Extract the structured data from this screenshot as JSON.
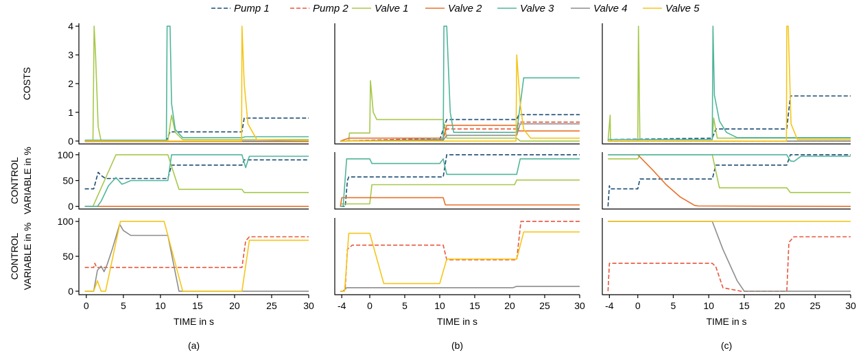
{
  "legend": [
    {
      "name": "Pump 1",
      "color": "#1a4b73",
      "dash": true
    },
    {
      "name": "Pump 2",
      "color": "#e8543a",
      "dash": true
    },
    {
      "name": "Valve 1",
      "color": "#a6c84a",
      "dash": false
    },
    {
      "name": "Valve 2",
      "color": "#e8702a",
      "dash": false
    },
    {
      "name": "Valve 3",
      "color": "#4fb59a",
      "dash": false
    },
    {
      "name": "Valve 4",
      "color": "#8c8c8c",
      "dash": false
    },
    {
      "name": "Valve 5",
      "color": "#f5c518",
      "dash": false
    }
  ],
  "row_labels": [
    [
      "COSTS"
    ],
    [
      "CONTROL",
      "VARIABLE in %"
    ],
    [
      "CONTROL",
      "VARIABLE in %"
    ]
  ],
  "xlabel": "TIME in s",
  "column_captions": [
    "(a)",
    "(b)",
    "(c)"
  ],
  "chart_data": [
    {
      "type": "line",
      "caption": "(a)",
      "row": "costs",
      "xlim": [
        -1,
        30
      ],
      "ylim": [
        -0.1,
        4.1
      ],
      "yticks": [
        0,
        1,
        2,
        3,
        4
      ],
      "xticks": [],
      "series": [
        {
          "name": "Pump 1",
          "x": [
            -0.2,
            10.8,
            11.3,
            21,
            21.3,
            30
          ],
          "y": [
            0.02,
            0.02,
            0.32,
            0.32,
            0.8,
            0.8
          ]
        },
        {
          "name": "Pump 2",
          "x": [
            -0.2,
            30
          ],
          "y": [
            0.0,
            0.0
          ]
        },
        {
          "name": "Valve 1",
          "x": [
            -0.2,
            0.9,
            1.05,
            1.25,
            1.6,
            2.0,
            11.0,
            11.5,
            12.0,
            13.0,
            30
          ],
          "y": [
            0.0,
            0.0,
            4.0,
            3.0,
            0.5,
            0.0,
            0.0,
            0.9,
            0.3,
            0.05,
            0.05
          ]
        },
        {
          "name": "Valve 2",
          "x": [
            -0.2,
            30
          ],
          "y": [
            -0.02,
            -0.02
          ]
        },
        {
          "name": "Valve 3",
          "x": [
            -0.2,
            10.8,
            10.9,
            11.3,
            11.5,
            12.0,
            13.0,
            21.0,
            21.5,
            30
          ],
          "y": [
            0.03,
            0.03,
            4.0,
            4.0,
            1.3,
            0.4,
            0.12,
            0.12,
            0.15,
            0.15
          ]
        },
        {
          "name": "Valve 4",
          "x": [
            -0.2,
            30
          ],
          "y": [
            0.0,
            0.0
          ]
        },
        {
          "name": "Valve 5",
          "x": [
            -0.2,
            20.95,
            21.0,
            21.3,
            21.8,
            23.0,
            30
          ],
          "y": [
            0.0,
            0.0,
            4.0,
            2.0,
            0.6,
            0.05,
            0.02
          ]
        }
      ]
    },
    {
      "type": "line",
      "caption": "(a)",
      "row": "control_1",
      "xlim": [
        -1,
        30
      ],
      "ylim": [
        -5,
        105
      ],
      "yticks": [
        0,
        50,
        100
      ],
      "xticks": [],
      "series": [
        {
          "name": "Pump 1",
          "x": [
            -0.2,
            1.0,
            1.6,
            2.0,
            2.6,
            11.0,
            11.5,
            21.0,
            21.3,
            30
          ],
          "y": [
            34,
            34,
            66,
            60,
            54,
            54,
            80,
            80,
            90,
            90
          ]
        },
        {
          "name": "Valve 1",
          "x": [
            -0.2,
            0.9,
            4.0,
            11.0,
            12.5,
            21.0,
            21.3,
            30
          ],
          "y": [
            0,
            0,
            100,
            100,
            33,
            33,
            27,
            27
          ]
        },
        {
          "name": "Valve 2",
          "x": [
            -0.2,
            30
          ],
          "y": [
            0,
            0
          ]
        },
        {
          "name": "Valve 3",
          "x": [
            -0.2,
            1.0,
            1.5,
            2.0,
            3.0,
            4.0,
            4.8,
            5.2,
            6.0,
            11.0,
            11.5,
            21.0,
            21.5,
            22.0,
            30
          ],
          "y": [
            0,
            0,
            0,
            10,
            40,
            56,
            43,
            45,
            50,
            50,
            100,
            100,
            75,
            97,
            97
          ]
        }
      ]
    },
    {
      "type": "line",
      "caption": "(a)",
      "row": "control_2",
      "xlim": [
        -1,
        30
      ],
      "ylim": [
        -5,
        105
      ],
      "yticks": [
        0,
        50,
        100
      ],
      "xticks": [
        0,
        5,
        10,
        15,
        20,
        25,
        30
      ],
      "series": [
        {
          "name": "Pump 2",
          "x": [
            -0.2,
            1.0,
            1.15,
            1.4,
            21.0,
            21.5,
            22.0,
            30
          ],
          "y": [
            34,
            34,
            40,
            34,
            34,
            72,
            78,
            78
          ]
        },
        {
          "name": "Valve 4",
          "x": [
            -0.2,
            1.0,
            1.5,
            2.0,
            2.4,
            2.8,
            3.5,
            4.5,
            5.0,
            6.0,
            11.0,
            12.5,
            30
          ],
          "y": [
            0,
            0,
            30,
            36,
            28,
            38,
            60,
            96,
            87,
            80,
            80,
            0,
            0
          ]
        },
        {
          "name": "Valve 5",
          "x": [
            -0.2,
            1.0,
            1.5,
            2.0,
            2.6,
            4.6,
            10.5,
            13.0,
            21.0,
            22.0,
            30
          ],
          "y": [
            0,
            0,
            15,
            0,
            0,
            100,
            100,
            0,
            0,
            73,
            73
          ]
        }
      ]
    },
    {
      "type": "line",
      "caption": "(b)",
      "row": "costs",
      "xlim": [
        -5,
        30
      ],
      "ylim": [
        -0.1,
        4.1
      ],
      "yticks": [],
      "xticks": [],
      "series": [
        {
          "name": "Pump 1",
          "x": [
            -4.2,
            10.0,
            11.0,
            21.0,
            21.3,
            30
          ],
          "y": [
            0.0,
            0.05,
            0.75,
            0.75,
            0.92,
            0.92
          ]
        },
        {
          "name": "Pump 2",
          "x": [
            -4.2,
            10.5,
            11.0,
            21.0,
            21.3,
            30
          ],
          "y": [
            0.0,
            0.1,
            0.42,
            0.42,
            0.66,
            0.66
          ]
        },
        {
          "name": "Valve 1",
          "x": [
            -4.2,
            -3.0,
            -2.9,
            0.0,
            0.1,
            0.5,
            1.0,
            10.5,
            11.0,
            21.0,
            21.5,
            30
          ],
          "y": [
            0.0,
            0.0,
            0.28,
            0.28,
            2.1,
            1.0,
            0.75,
            0.75,
            0.1,
            0.1,
            0.0,
            0.0
          ]
        },
        {
          "name": "Valve 2",
          "x": [
            -4.2,
            -3.0,
            10.5,
            11.0,
            21.0,
            21.3,
            30
          ],
          "y": [
            0.0,
            0.1,
            0.1,
            0.55,
            0.55,
            0.35,
            0.35
          ]
        },
        {
          "name": "Valve 3",
          "x": [
            -4.2,
            10.5,
            10.6,
            11.0,
            11.5,
            12.0,
            21.0,
            22.0,
            30
          ],
          "y": [
            0.0,
            0.05,
            4.0,
            4.0,
            1.0,
            0.3,
            0.3,
            2.2,
            2.2
          ]
        },
        {
          "name": "Valve 4",
          "x": [
            -4.2,
            10.5,
            11.0,
            21.0,
            21.5,
            30
          ],
          "y": [
            0.0,
            0.03,
            0.2,
            0.2,
            0.6,
            0.6
          ]
        },
        {
          "name": "Valve 5",
          "x": [
            -4.2,
            20.9,
            21.0,
            21.5,
            22.0,
            23.0,
            30
          ],
          "y": [
            0.0,
            0.0,
            3.0,
            1.3,
            0.4,
            0.1,
            0.1
          ]
        }
      ]
    },
    {
      "type": "line",
      "caption": "(b)",
      "row": "control_1",
      "xlim": [
        -5,
        30
      ],
      "ylim": [
        -5,
        105
      ],
      "yticks": [],
      "xticks": [],
      "series": [
        {
          "name": "Pump 1",
          "x": [
            -4.2,
            -3.5,
            -3.2,
            -3.0,
            10.5,
            11.0,
            30
          ],
          "y": [
            0,
            0,
            50,
            57,
            57,
            100,
            100
          ]
        },
        {
          "name": "Valve 1",
          "x": [
            -4.2,
            -3.0,
            0.0,
            0.3,
            20.7,
            21.0,
            30
          ],
          "y": [
            5,
            5,
            5,
            42,
            42,
            51,
            51
          ]
        },
        {
          "name": "Valve 2",
          "x": [
            -4.2,
            -4.0,
            10.5,
            10.8,
            30
          ],
          "y": [
            0,
            17,
            17,
            3,
            3
          ]
        },
        {
          "name": "Valve 3",
          "x": [
            -4.2,
            -3.8,
            -3.3,
            0.0,
            0.3,
            10.0,
            10.5,
            11.0,
            21.0,
            21.5,
            30
          ],
          "y": [
            0,
            0,
            92,
            92,
            83,
            83,
            92,
            62,
            62,
            92,
            92
          ]
        }
      ]
    },
    {
      "type": "line",
      "caption": "(b)",
      "row": "control_2",
      "xlim": [
        -5,
        30
      ],
      "ylim": [
        -5,
        105
      ],
      "yticks": [],
      "xticks": [
        -4,
        0,
        5,
        10,
        15,
        20,
        25,
        30
      ],
      "series": [
        {
          "name": "Pump 2",
          "x": [
            -4.2,
            -3.8,
            -3.5,
            -3.2,
            -2.5,
            10.5,
            11.0,
            21.0,
            21.6,
            30
          ],
          "y": [
            0,
            0,
            5,
            60,
            66,
            66,
            45,
            45,
            100,
            100
          ]
        },
        {
          "name": "Valve 4",
          "x": [
            -4.2,
            -3.8,
            -3.3,
            20.5,
            21.0,
            30
          ],
          "y": [
            0,
            0,
            5,
            5,
            7,
            7
          ]
        },
        {
          "name": "Valve 5",
          "x": [
            -4.2,
            -3.6,
            -3.0,
            0.0,
            2.0,
            10.0,
            11.0,
            21.0,
            22.0,
            30
          ],
          "y": [
            0,
            0,
            83,
            83,
            11,
            11,
            46,
            46,
            85,
            85
          ]
        }
      ]
    },
    {
      "type": "line",
      "caption": "(c)",
      "row": "costs",
      "xlim": [
        -5,
        30
      ],
      "ylim": [
        -0.1,
        4.1
      ],
      "yticks": [],
      "xticks": [],
      "series": [
        {
          "name": "Pump 1",
          "x": [
            -4.2,
            10.5,
            11.0,
            21.0,
            21.5,
            30
          ],
          "y": [
            0.05,
            0.1,
            0.42,
            0.42,
            1.57,
            1.57
          ]
        },
        {
          "name": "Pump 2",
          "x": [
            -4.2,
            30
          ],
          "y": [
            0.0,
            0.0
          ]
        },
        {
          "name": "Valve 1",
          "x": [
            -4.2,
            -3.9,
            -3.85,
            -3.6,
            0.0,
            0.1,
            0.3,
            10.5,
            10.7,
            11.2,
            30
          ],
          "y": [
            0.0,
            0.9,
            0.05,
            0.0,
            0.0,
            4.0,
            0.05,
            0.05,
            0.8,
            0.1,
            0.1
          ]
        },
        {
          "name": "Valve 2",
          "x": [
            -4.2,
            30
          ],
          "y": [
            0.0,
            0.0
          ]
        },
        {
          "name": "Valve 3",
          "x": [
            -4.2,
            10.5,
            10.6,
            10.8,
            11.5,
            12.5,
            14.0,
            21.0,
            30
          ],
          "y": [
            0.05,
            0.05,
            4.0,
            1.6,
            0.7,
            0.3,
            0.12,
            0.12,
            0.12
          ]
        },
        {
          "name": "Valve 4",
          "x": [
            -4.2,
            30
          ],
          "y": [
            0.0,
            0.0
          ]
        },
        {
          "name": "Valve 5",
          "x": [
            -4.2,
            20.95,
            21.0,
            21.2,
            21.6,
            22.5,
            30
          ],
          "y": [
            0.0,
            0.0,
            4.0,
            4.0,
            0.6,
            0.05,
            0.05
          ]
        }
      ]
    },
    {
      "type": "line",
      "caption": "(c)",
      "row": "control_1",
      "xlim": [
        -5,
        30
      ],
      "ylim": [
        -5,
        105
      ],
      "yticks": [],
      "xticks": [],
      "series": [
        {
          "name": "Pump 1",
          "x": [
            -4.2,
            -4.0,
            -3.9,
            0.0,
            0.3,
            10.5,
            11.0,
            21.0,
            21.5,
            30
          ],
          "y": [
            0,
            40,
            34,
            34,
            53,
            53,
            80,
            80,
            100,
            100
          ]
        },
        {
          "name": "Valve 1",
          "x": [
            -4.2,
            -4.0,
            0.0,
            0.3,
            10.5,
            11.5,
            21.0,
            21.5,
            30
          ],
          "y": [
            92,
            92,
            92,
            100,
            100,
            36,
            36,
            27,
            27
          ]
        },
        {
          "name": "Valve 2",
          "x": [
            -4.2,
            0.0,
            2.0,
            4.0,
            6.0,
            8.0,
            8.5,
            30
          ],
          "y": [
            100,
            100,
            72,
            42,
            18,
            2,
            1,
            0
          ]
        },
        {
          "name": "Valve 3",
          "x": [
            -4.2,
            10.5,
            21.0,
            21.5,
            22.0,
            23.0,
            30
          ],
          "y": [
            100,
            100,
            100,
            88,
            87,
            97,
            97
          ]
        }
      ]
    },
    {
      "type": "line",
      "caption": "(c)",
      "row": "control_2",
      "xlim": [
        -5,
        30
      ],
      "ylim": [
        -5,
        105
      ],
      "yticks": [],
      "xticks": [
        -4,
        0,
        5,
        10,
        15,
        20,
        25,
        30
      ],
      "series": [
        {
          "name": "Pump 2",
          "x": [
            -4.2,
            -4.0,
            -3.8,
            10.5,
            11.0,
            12.0,
            14.5,
            21.0,
            21.3,
            22.0,
            30
          ],
          "y": [
            0,
            40,
            40,
            40,
            35,
            5,
            0,
            0,
            70,
            78,
            78
          ]
        },
        {
          "name": "Valve 4",
          "x": [
            -4.2,
            -4.0,
            10.5,
            12.0,
            14.0,
            15.0,
            30
          ],
          "y": [
            100,
            100,
            100,
            60,
            15,
            0,
            0
          ]
        },
        {
          "name": "Valve 5",
          "x": [
            -4.2,
            -4.0,
            30
          ],
          "y": [
            100,
            100,
            100
          ]
        }
      ]
    }
  ]
}
